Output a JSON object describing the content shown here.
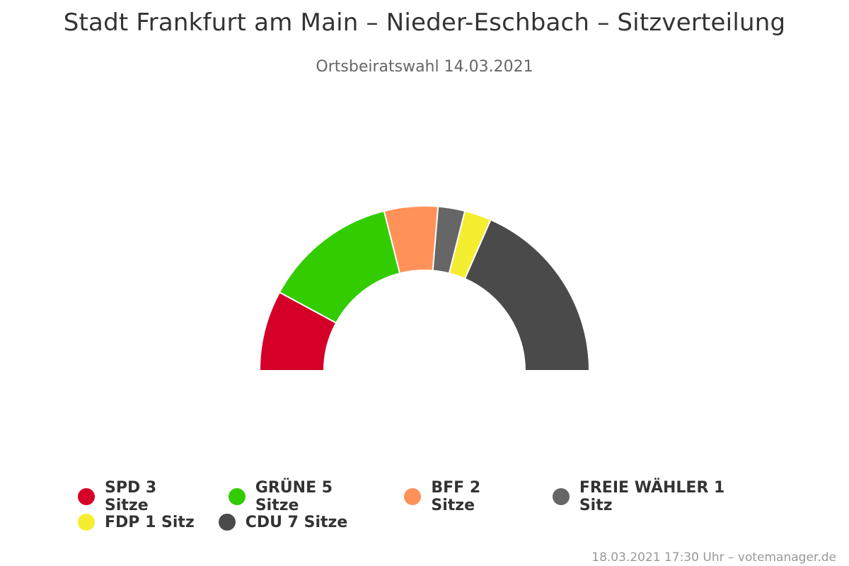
{
  "chart_data": {
    "type": "pie",
    "variant": "semi-circle parliament",
    "title": "Stadt Frankfurt am Main – Nieder-Eschbach – Sitzverteilung",
    "subtitle": "Ortsbeiratswahl 14.03.2021",
    "series": [
      {
        "name": "SPD",
        "seats": 3,
        "legend_label": "SPD 3 Sitze",
        "color": "#d40028"
      },
      {
        "name": "GRÜNE",
        "seats": 5,
        "legend_label": "GRÜNE 5 Sitze",
        "color": "#33cc00"
      },
      {
        "name": "BFF",
        "seats": 2,
        "legend_label": "BFF 2 Sitze",
        "color": "#ff9159"
      },
      {
        "name": "FREIE WÄHLER",
        "seats": 1,
        "legend_label": "FREIE WÄHLER 1 Sitz",
        "color": "#666666"
      },
      {
        "name": "FDP",
        "seats": 1,
        "legend_label": "FDP 1 Sitz",
        "color": "#f5ed30"
      },
      {
        "name": "CDU",
        "seats": 7,
        "legend_label": "CDU 7 Sitze",
        "color": "#4a4a4a"
      }
    ],
    "legend_placement": "bottom"
  },
  "credit": "18.03.2021 17:30 Uhr – votemanager.de"
}
